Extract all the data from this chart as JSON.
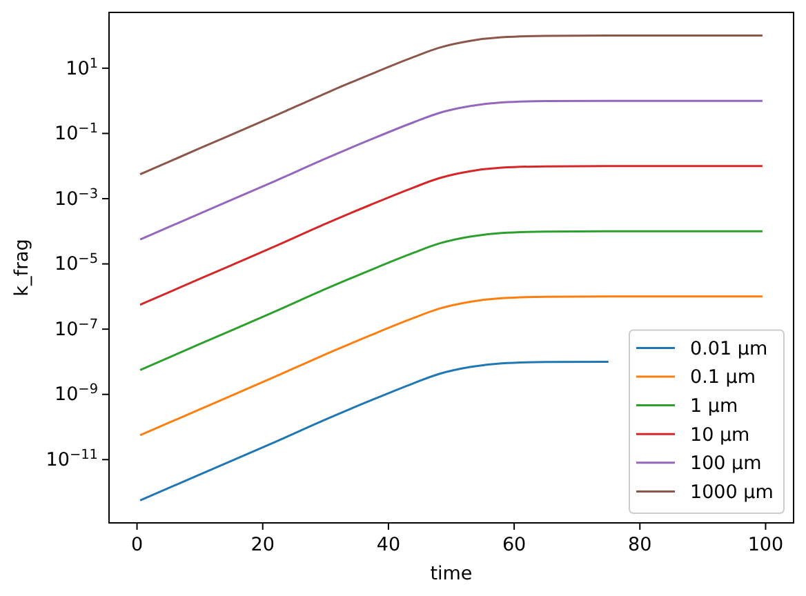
{
  "chart_data": {
    "type": "line",
    "xlabel": "time",
    "ylabel": "k_frag",
    "log": "y",
    "legend": "bottom right",
    "grid": false,
    "marker": "none",
    "line_style": "solid",
    "xlim": [
      -4.45,
      104.45
    ],
    "xticks": [
      0,
      20,
      40,
      60,
      80,
      100
    ],
    "ylim": [
      1.15e-13,
      513
    ],
    "yticks": [
      {
        "value": 1e-11,
        "label": "10$^{−11}$"
      },
      {
        "value": 1e-09,
        "label": "10$^{−9}$"
      },
      {
        "value": 1e-07,
        "label": "10$^{−7}$"
      },
      {
        "value": 1e-05,
        "label": "10$^{−5}$"
      },
      {
        "value": 0.001,
        "label": "10$^{−3}$"
      },
      {
        "value": 0.1,
        "label": "10$^{−1}$"
      },
      {
        "value": 10,
        "label": "10$^{1}$"
      }
    ],
    "x": [
      0.5,
      10,
      22,
      30,
      37,
      44,
      48,
      53,
      58,
      65,
      75,
      99.5
    ],
    "series": [
      {
        "name": "0.01 µm",
        "color": "#1f77b4",
        "values": [
          5.6e-13,
          3.5e-12,
          3.5e-11,
          1.7e-10,
          6.3e-10,
          2.2e-09,
          4.2e-09,
          6.9e-09,
          8.9e-09,
          9.8e-09,
          1e-08,
          null
        ]
      },
      {
        "name": "0.1 µm",
        "color": "#ff7f0e",
        "values": [
          5.6e-11,
          3.5e-10,
          3.5e-09,
          1.7e-08,
          6.3e-08,
          2.2e-07,
          4.2e-07,
          6.9e-07,
          8.9e-07,
          9.8e-07,
          1e-06,
          1e-06
        ]
      },
      {
        "name": "1 µm",
        "color": "#2ca02c",
        "values": [
          5.6e-09,
          3.5e-08,
          3.5e-07,
          1.7e-06,
          6.3e-06,
          2.2e-05,
          4.2e-05,
          6.9e-05,
          8.9e-05,
          9.8e-05,
          0.0001,
          0.0001
        ]
      },
      {
        "name": "10 µm",
        "color": "#d62728",
        "values": [
          5.6e-07,
          3.5e-06,
          3.5e-05,
          0.00017,
          0.00063,
          0.0022,
          0.0042,
          0.0069,
          0.0089,
          0.0098,
          0.01,
          0.01
        ]
      },
      {
        "name": "100 µm",
        "color": "#9467bd",
        "values": [
          5.6e-05,
          0.00035,
          0.0035,
          0.017,
          0.063,
          0.22,
          0.42,
          0.69,
          0.89,
          0.98,
          1,
          1
        ]
      },
      {
        "name": "1000 µm",
        "color": "#8c564b",
        "values": [
          0.0056,
          0.035,
          0.35,
          1.7,
          6.3,
          22,
          42,
          69,
          89,
          98,
          100,
          100
        ]
      }
    ]
  }
}
